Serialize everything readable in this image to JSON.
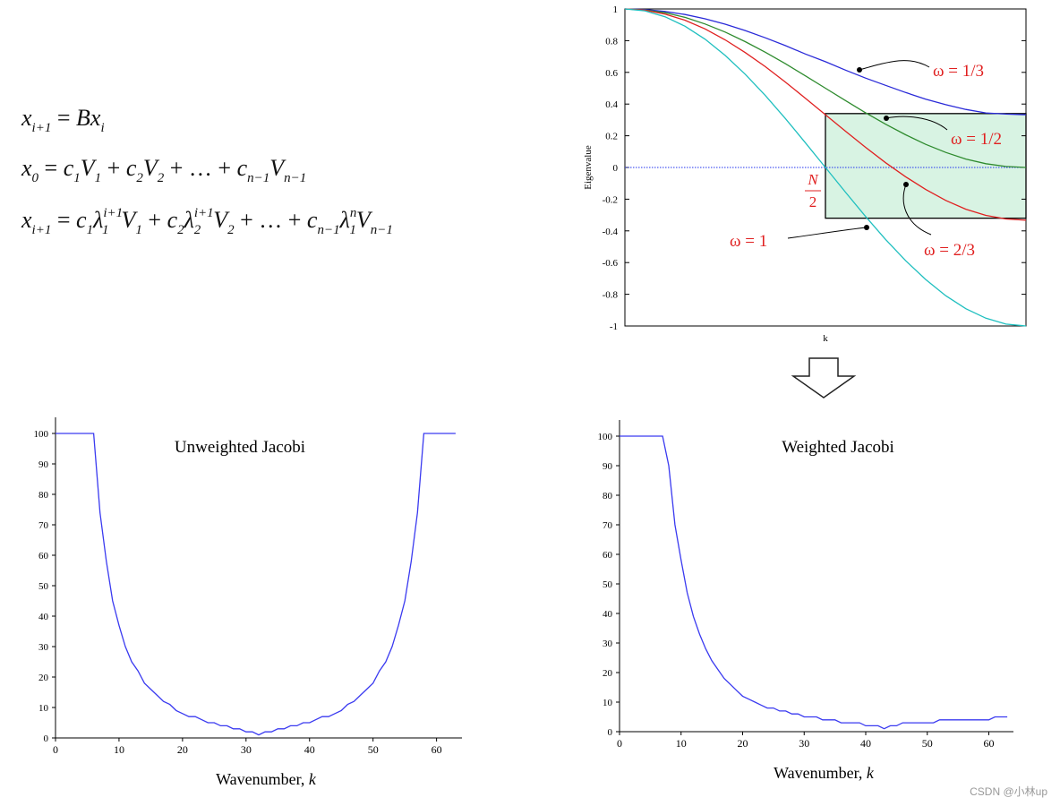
{
  "formulas": {
    "line1": "x_{i+1} = Bx_i",
    "line2": "x_0 = c_1V_1 + c_2V_2 + … + c_{n-1}V_{n-1}",
    "line3": "x_{i+1} = c_1λ_1^{i+1}V_1 + c_2λ_2^{i+1}V_2 + … + c_{n-1}λ_1^nV_{n-1}"
  },
  "watermark": "CSDN @小林up",
  "chart_data": [
    {
      "type": "line",
      "title": "",
      "xlabel": "k",
      "ylabel": "Eigenvalue",
      "xlim": [
        0,
        1
      ],
      "ylim": [
        -1,
        1
      ],
      "yticks": [
        "1",
        "0.8",
        "0.6",
        "0.4",
        "0.2",
        "0",
        "-0.2",
        "-0.4",
        "-0.6",
        "-0.8",
        "-1"
      ],
      "x": [
        0.0,
        0.05,
        0.1,
        0.15,
        0.2,
        0.25,
        0.3,
        0.35,
        0.4,
        0.45,
        0.5,
        0.55,
        0.6,
        0.65,
        0.7,
        0.75,
        0.8,
        0.85,
        0.9,
        0.95,
        1.0
      ],
      "series": [
        {
          "name": "ω = 1/3",
          "color": "#2a2ad8",
          "values": [
            1.0,
            0.996,
            0.984,
            0.965,
            0.938,
            0.904,
            0.864,
            0.818,
            0.769,
            0.716,
            0.667,
            0.614,
            0.564,
            0.518,
            0.473,
            0.431,
            0.396,
            0.366,
            0.344,
            0.337,
            0.333
          ]
        },
        {
          "name": "ω = 1/2",
          "color": "#2e8b2e",
          "values": [
            1.0,
            0.994,
            0.976,
            0.947,
            0.905,
            0.854,
            0.794,
            0.727,
            0.655,
            0.578,
            0.5,
            0.422,
            0.345,
            0.273,
            0.206,
            0.146,
            0.095,
            0.053,
            0.024,
            0.006,
            0.0
          ]
        },
        {
          "name": "ω = 2/3",
          "color": "#e02020",
          "values": [
            1.0,
            0.992,
            0.968,
            0.929,
            0.874,
            0.805,
            0.725,
            0.636,
            0.539,
            0.437,
            0.333,
            0.229,
            0.127,
            0.03,
            -0.059,
            -0.139,
            -0.208,
            -0.263,
            -0.302,
            -0.325,
            -0.333
          ]
        },
        {
          "name": "ω = 1",
          "color": "#1fbfbf",
          "values": [
            1.0,
            0.988,
            0.951,
            0.891,
            0.809,
            0.707,
            0.588,
            0.454,
            0.309,
            0.156,
            0.0,
            -0.156,
            -0.309,
            -0.454,
            -0.588,
            -0.707,
            -0.809,
            -0.891,
            -0.951,
            -0.988,
            -1.0
          ]
        }
      ],
      "zero_line": true,
      "annotations": [
        {
          "text": "ω = 1/3",
          "target": "ω = 1/3"
        },
        {
          "text": "ω = 1/2",
          "target": "ω = 1/2"
        },
        {
          "text": "ω = 2/3",
          "target": "ω = 2/3"
        },
        {
          "text": "ω = 1",
          "target": "ω = 1"
        }
      ],
      "region": {
        "x0": 0.5,
        "x1": 1.0,
        "y0": -0.32,
        "y1": 0.34,
        "fill": "#d8f3e3",
        "label_num": "N",
        "label_den": "2"
      },
      "legend": "annotations"
    },
    {
      "type": "line",
      "title": "Unweighted Jacobi",
      "xlabel": "Wavenumber, ",
      "xlabel_italic": "k",
      "ylabel": "",
      "xlim": [
        0,
        64
      ],
      "ylim": [
        0,
        100
      ],
      "xticks": [
        0,
        10,
        20,
        30,
        40,
        50,
        60
      ],
      "yticks": [
        0,
        10,
        20,
        30,
        40,
        50,
        60,
        70,
        80,
        90,
        100
      ],
      "color": "#3a3af0",
      "x": [
        0,
        1,
        2,
        3,
        4,
        5,
        6,
        7,
        8,
        9,
        10,
        11,
        12,
        13,
        14,
        15,
        16,
        17,
        18,
        19,
        20,
        21,
        22,
        23,
        24,
        25,
        26,
        27,
        28,
        29,
        30,
        31,
        32,
        33,
        34,
        35,
        36,
        37,
        38,
        39,
        40,
        41,
        42,
        43,
        44,
        45,
        46,
        47,
        48,
        49,
        50,
        51,
        52,
        53,
        54,
        55,
        56,
        57,
        58,
        59,
        60,
        61,
        62,
        63
      ],
      "values": [
        100,
        100,
        100,
        100,
        100,
        100,
        100,
        74,
        58,
        45,
        37,
        30,
        25,
        22,
        18,
        16,
        14,
        12,
        11,
        9,
        8,
        7,
        7,
        6,
        5,
        5,
        4,
        4,
        3,
        3,
        2,
        2,
        1,
        2,
        2,
        3,
        3,
        4,
        4,
        5,
        5,
        6,
        7,
        7,
        8,
        9,
        11,
        12,
        14,
        16,
        18,
        22,
        25,
        30,
        37,
        45,
        58,
        74,
        100,
        100,
        100,
        100,
        100,
        100
      ]
    },
    {
      "type": "line",
      "title": "Weighted Jacobi",
      "xlabel": "Wavenumber, ",
      "xlabel_italic": "k",
      "ylabel": "",
      "xlim": [
        0,
        64
      ],
      "ylim": [
        0,
        100
      ],
      "xticks": [
        0,
        10,
        20,
        30,
        40,
        50,
        60
      ],
      "yticks": [
        0,
        10,
        20,
        30,
        40,
        50,
        60,
        70,
        80,
        90,
        100
      ],
      "color": "#3a3af0",
      "x": [
        0,
        1,
        2,
        3,
        4,
        5,
        6,
        7,
        8,
        9,
        10,
        11,
        12,
        13,
        14,
        15,
        16,
        17,
        18,
        19,
        20,
        21,
        22,
        23,
        24,
        25,
        26,
        27,
        28,
        29,
        30,
        31,
        32,
        33,
        34,
        35,
        36,
        37,
        38,
        39,
        40,
        41,
        42,
        43,
        44,
        45,
        46,
        47,
        48,
        49,
        50,
        51,
        52,
        53,
        54,
        55,
        56,
        57,
        58,
        59,
        60,
        61,
        62,
        63
      ],
      "values": [
        100,
        100,
        100,
        100,
        100,
        100,
        100,
        100,
        90,
        70,
        58,
        47,
        39,
        33,
        28,
        24,
        21,
        18,
        16,
        14,
        12,
        11,
        10,
        9,
        8,
        8,
        7,
        7,
        6,
        6,
        5,
        5,
        5,
        4,
        4,
        4,
        3,
        3,
        3,
        3,
        2,
        2,
        2,
        1,
        2,
        2,
        3,
        3,
        3,
        3,
        3,
        3,
        4,
        4,
        4,
        4,
        4,
        4,
        4,
        4,
        4,
        5,
        5,
        5
      ]
    }
  ]
}
